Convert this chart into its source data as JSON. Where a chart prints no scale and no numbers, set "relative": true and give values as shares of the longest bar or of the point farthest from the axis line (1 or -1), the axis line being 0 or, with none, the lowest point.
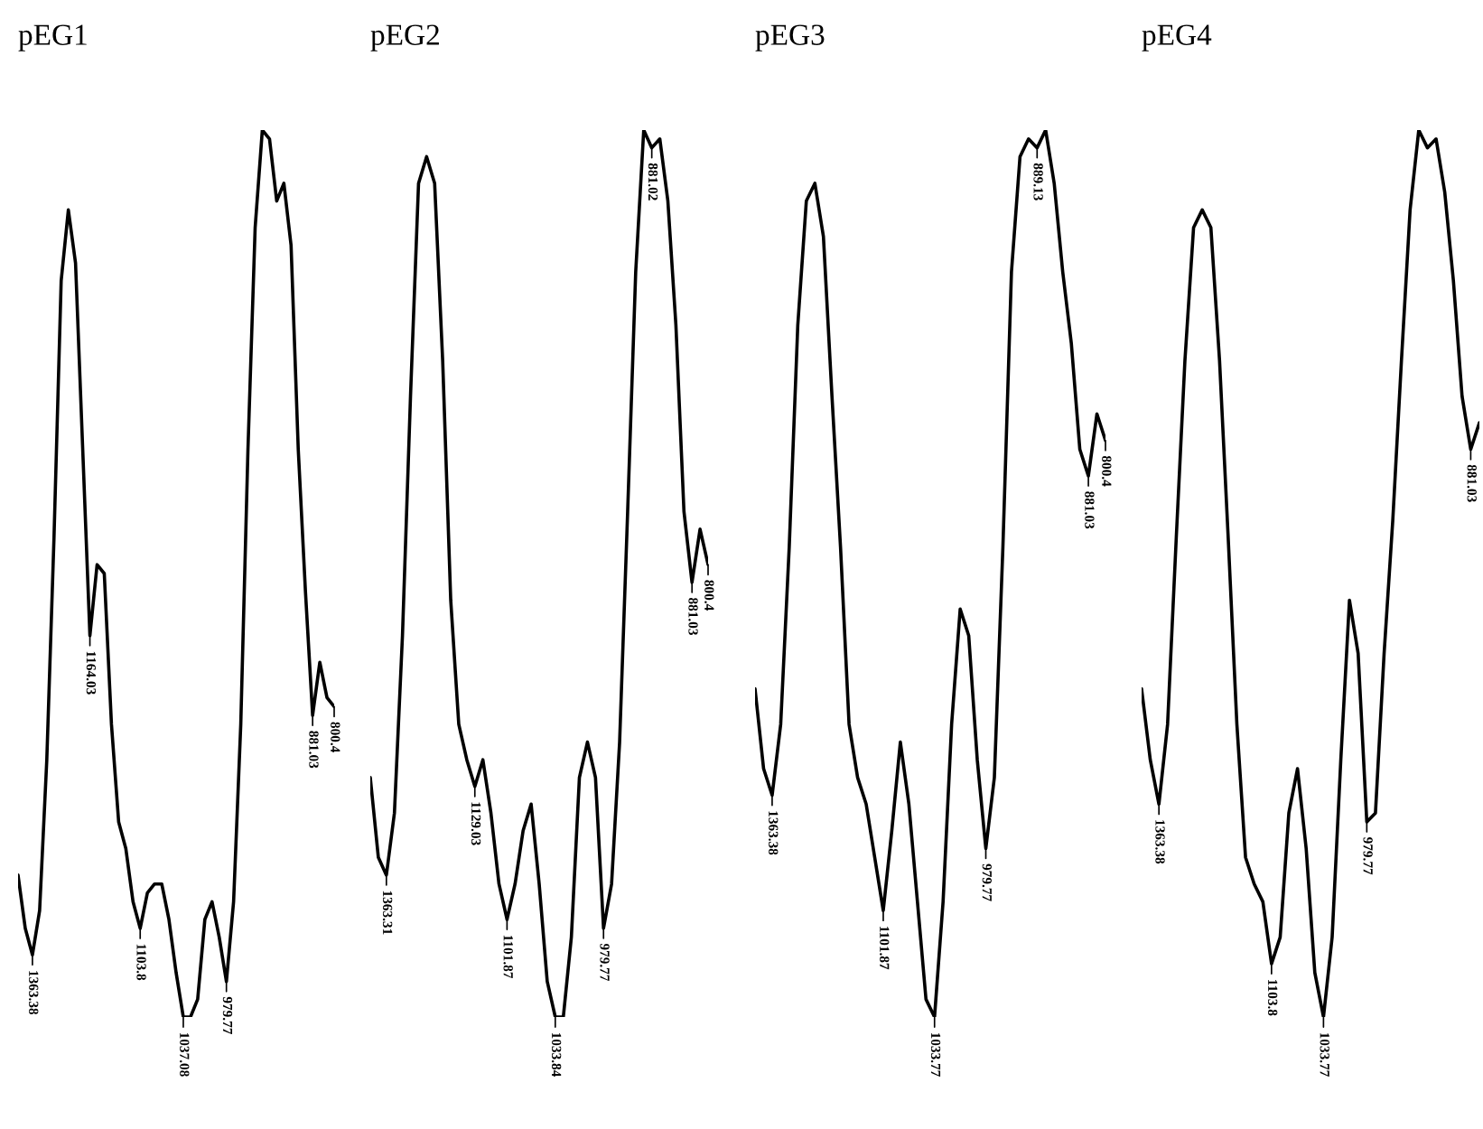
{
  "chart_data": [
    {
      "type": "line",
      "title": "pEG1",
      "relative": true,
      "categories": [
        null,
        null,
        null,
        null,
        null,
        null,
        null,
        null,
        null,
        null,
        null,
        null,
        null,
        null,
        null,
        null,
        null,
        null,
        null,
        null,
        null,
        null,
        null,
        null,
        null,
        null,
        null,
        null,
        null,
        null,
        null,
        null,
        null,
        null,
        null,
        null,
        null,
        null,
        null,
        null,
        null,
        null,
        null,
        null,
        null
      ],
      "series": [
        {
          "color": "#000000",
          "values": [
            0.16,
            0.1,
            0.07,
            0.12,
            0.29,
            0.54,
            0.83,
            0.91,
            0.85,
            0.64,
            0.43,
            0.51,
            0.5,
            0.33,
            0.22,
            0.19,
            0.13,
            0.1,
            0.14,
            0.15,
            0.15,
            0.11,
            0.05,
            0,
            0,
            0.02,
            0.11,
            0.13,
            0.09,
            0.04,
            0.13,
            0.33,
            0.64,
            0.89,
            1,
            0.99,
            0.92,
            0.94,
            0.87,
            0.64,
            0.48,
            0.34,
            0.4,
            0.36,
            0.35
          ]
        }
      ],
      "annotations": [
        "1363.38",
        "1164.03",
        "1103.8",
        "1037.08",
        "979.77",
        "881.03",
        "800.4"
      ]
    },
    {
      "type": "line",
      "title": "pEG2",
      "relative": true,
      "categories": [
        null,
        null,
        null,
        null,
        null,
        null,
        null,
        null,
        null,
        null,
        null,
        null,
        null,
        null,
        null,
        null,
        null,
        null,
        null,
        null,
        null,
        null,
        null,
        null,
        null,
        null,
        null,
        null,
        null,
        null,
        null,
        null,
        null,
        null,
        null,
        null,
        null,
        null,
        null,
        null,
        null,
        null,
        null
      ],
      "series": [
        {
          "color": "#000000",
          "values": [
            0.27,
            0.18,
            0.16,
            0.23,
            0.43,
            0.7,
            0.94,
            0.97,
            0.94,
            0.74,
            0.47,
            0.33,
            0.29,
            0.26,
            0.29,
            0.23,
            0.15,
            0.11,
            0.15,
            0.21,
            0.24,
            0.15,
            0.04,
            0,
            0,
            0.09,
            0.27,
            0.31,
            0.27,
            0.1,
            0.15,
            0.31,
            0.57,
            0.84,
            1,
            0.98,
            0.99,
            0.92,
            0.78,
            0.57,
            0.49,
            0.55,
            0.51
          ]
        }
      ],
      "annotations": [
        "1363.31",
        "1129.03",
        "1101.87",
        "1033.84",
        "979.77",
        "881.02",
        "881.03",
        "800.4"
      ]
    },
    {
      "type": "line",
      "title": "pEG3",
      "relative": true,
      "categories": [
        null,
        null,
        null,
        null,
        null,
        null,
        null,
        null,
        null,
        null,
        null,
        null,
        null,
        null,
        null,
        null,
        null,
        null,
        null,
        null,
        null,
        null,
        null,
        null,
        null,
        null,
        null,
        null,
        null,
        null,
        null,
        null,
        null,
        null,
        null,
        null,
        null,
        null,
        null,
        null,
        null,
        null
      ],
      "series": [
        {
          "color": "#000000",
          "values": [
            0.37,
            0.28,
            0.25,
            0.33,
            0.53,
            0.78,
            0.92,
            0.94,
            0.88,
            0.7,
            0.53,
            0.33,
            0.27,
            0.24,
            0.18,
            0.12,
            0.21,
            0.31,
            0.24,
            0.13,
            0.02,
            0,
            0.13,
            0.33,
            0.46,
            0.43,
            0.29,
            0.19,
            0.27,
            0.53,
            0.84,
            0.97,
            0.99,
            0.98,
            1,
            0.94,
            0.84,
            0.76,
            0.64,
            0.61,
            0.68,
            0.65
          ]
        }
      ],
      "annotations": [
        "1363.38",
        "1101.87",
        "1033.77",
        "979.77",
        "889.13",
        "881.03",
        "800.4"
      ]
    },
    {
      "type": "line",
      "title": "pEG4",
      "relative": true,
      "categories": [
        null,
        null,
        null,
        null,
        null,
        null,
        null,
        null,
        null,
        null,
        null,
        null,
        null,
        null,
        null,
        null,
        null,
        null,
        null,
        null,
        null,
        null,
        null,
        null,
        null,
        null,
        null,
        null,
        null,
        null,
        null,
        null,
        null,
        null,
        null,
        null,
        null,
        null,
        null,
        null
      ],
      "series": [
        {
          "color": "#000000",
          "values": [
            0.37,
            0.29,
            0.24,
            0.33,
            0.54,
            0.74,
            0.89,
            0.91,
            0.89,
            0.74,
            0.54,
            0.33,
            0.18,
            0.15,
            0.13,
            0.06,
            0.09,
            0.23,
            0.28,
            0.19,
            0.05,
            0,
            0.09,
            0.29,
            0.47,
            0.41,
            0.22,
            0.23,
            0.41,
            0.56,
            0.74,
            0.91,
            1,
            0.98,
            0.99,
            0.93,
            0.83,
            0.7,
            0.64,
            0.67
          ]
        }
      ],
      "annotations": [
        "1363.38",
        "1103.8",
        "1033.77",
        "979.77",
        "881.03"
      ]
    }
  ]
}
